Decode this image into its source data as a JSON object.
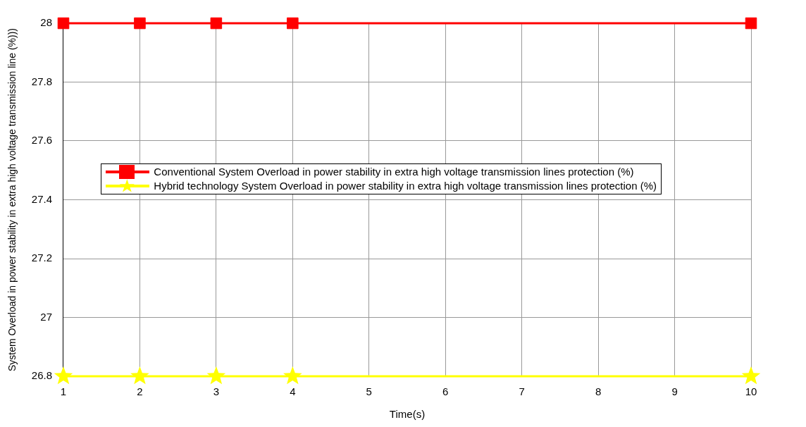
{
  "chart_data": {
    "type": "line",
    "xlabel": "Time(s)",
    "ylabel": "System Overload in power stability in extra high voltage transmission line (%)))",
    "xlim": [
      1,
      10
    ],
    "xticks": [
      1,
      2,
      3,
      4,
      5,
      6,
      7,
      8,
      9,
      10
    ],
    "ylim": [
      26.8,
      28
    ],
    "yticks": [
      26.8,
      27,
      27.2,
      27.4,
      27.6,
      27.8,
      28
    ],
    "grid": true,
    "legend": "center",
    "line_style": "solid",
    "series": [
      {
        "name": "Conventional System Overload in power stability in extra high voltage transmission lines protection (%)",
        "color": "#ff0000",
        "marker": "square",
        "x": [
          1,
          2,
          3,
          4,
          10
        ],
        "values": [
          28,
          28,
          28,
          28,
          28
        ]
      },
      {
        "name": "Hybrid technology System Overload in power stability in extra high voltage transmission lines protection (%)",
        "color": "#ffff00",
        "marker": "star",
        "x": [
          1,
          2,
          3,
          4,
          10
        ],
        "values": [
          26.8,
          26.8,
          26.8,
          26.8,
          26.8
        ]
      }
    ]
  }
}
